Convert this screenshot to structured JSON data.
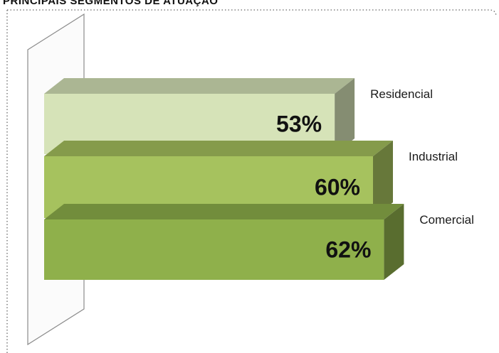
{
  "header": {
    "title": "PRINCIPAIS SEGMENTOS DE ATUAÇÃO"
  },
  "chart_data": {
    "type": "bar",
    "orientation": "horizontal",
    "three_d": true,
    "categories": [
      "Residencial",
      "Industrial",
      "Comercial"
    ],
    "values": [
      53,
      60,
      62
    ],
    "value_labels": [
      "53%",
      "60%",
      "62%"
    ],
    "unit": "%",
    "xlim": [
      0,
      70
    ],
    "grid": false,
    "legend": "none",
    "colors": {
      "Residencial": "#d6e3b8",
      "Industrial": "#a6c25e",
      "Comercial": "#8fb04b"
    }
  }
}
